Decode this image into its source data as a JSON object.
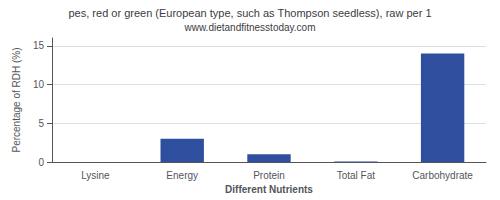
{
  "chart_data": {
    "type": "bar",
    "title": "pes, red or green (European type, such as Thompson seedless), raw per 1",
    "subtitle": "www.dietandfitnesstoday.com",
    "xlabel": "Different Nutrients",
    "ylabel": "Percentage of RDH (%)",
    "categories": [
      "Lysine",
      "Energy",
      "Protein",
      "Total Fat",
      "Carbohydrate"
    ],
    "values": [
      0.0,
      3.0,
      1.0,
      0.05,
      14.0
    ],
    "color": "#2e4f9e",
    "ylim": [
      0,
      16
    ],
    "yticks": [
      0,
      5,
      10,
      15
    ],
    "grid": true
  }
}
